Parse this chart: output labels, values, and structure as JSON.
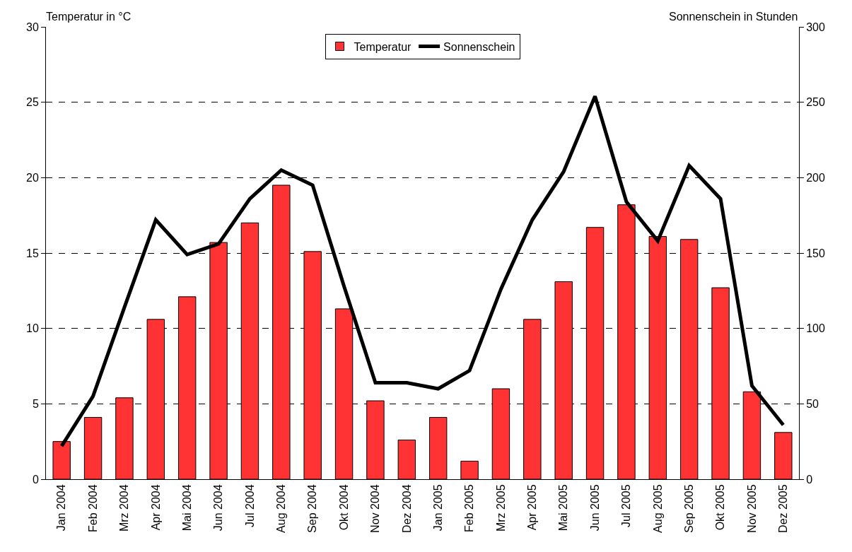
{
  "chart_data": {
    "type": "bar",
    "ylabel": "Temperatur in °C",
    "y2label": "Sonnenschein in Stunden",
    "categories": [
      "Jan 2004",
      "Feb 2004",
      "Mrz 2004",
      "Apr 2004",
      "Mai 2004",
      "Jun 2004",
      "Jul 2004",
      "Aug 2004",
      "Sep 2004",
      "Okt 2004",
      "Nov 2004",
      "Dez 2004",
      "Jan 2005",
      "Feb 2005",
      "Mrz 2005",
      "Apr 2005",
      "Mai 2005",
      "Jun 2005",
      "Jul 2005",
      "Aug 2005",
      "Sep 2005",
      "Okt 2005",
      "Nov 2005",
      "Dez 2005"
    ],
    "series": [
      {
        "name": "Temperatur",
        "color": "#ff3333",
        "values": [
          2.5,
          4.1,
          5.4,
          10.6,
          12.1,
          15.7,
          17.0,
          19.5,
          15.1,
          11.3,
          5.2,
          2.6,
          4.1,
          1.2,
          6.0,
          10.6,
          13.1,
          16.7,
          18.2,
          16.1,
          15.9,
          12.7,
          5.8,
          3.1
        ]
      },
      {
        "name": "Sonnenschein",
        "type": "line",
        "axis": "y2",
        "color": "#000000",
        "values": [
          22,
          55,
          114,
          172,
          149,
          156,
          186,
          205,
          195,
          128,
          64,
          64,
          60,
          72,
          126,
          172,
          204,
          254,
          184,
          158,
          208,
          186,
          62,
          36
        ]
      }
    ],
    "ylim": [
      0,
      30
    ],
    "yticks": [
      0,
      5,
      10,
      15,
      20,
      25,
      30
    ],
    "y2lim": [
      0,
      300
    ],
    "y2ticks": [
      0,
      50,
      100,
      150,
      200,
      250,
      300
    ],
    "grid": "y",
    "legend": "top"
  }
}
